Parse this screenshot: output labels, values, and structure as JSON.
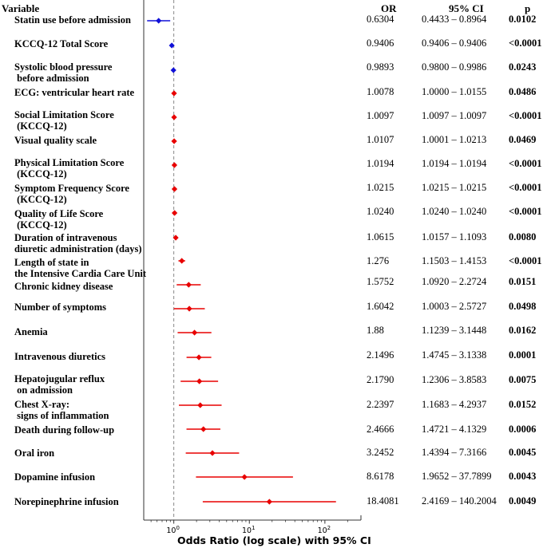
{
  "chart_data": {
    "type": "forest",
    "headers": {
      "variable": "Variable",
      "or": "OR",
      "ci": "95% CI",
      "p": "p"
    },
    "xlabel": "Odds Ratio (log scale) with 95% CI",
    "x_scale": "log",
    "xlim": [
      0.4,
      300
    ],
    "xticks": [
      {
        "value": 1,
        "base": "10",
        "exp": "0"
      },
      {
        "value": 10,
        "base": "10",
        "exp": "1"
      },
      {
        "value": 100,
        "base": "10",
        "exp": "2"
      }
    ],
    "reference_line": 1,
    "colors": {
      "protective": "#1010d8",
      "risk": "#e80000",
      "reference": "#888888"
    },
    "rows": [
      {
        "variable": "Statin use before admission",
        "or": 0.6304,
        "lo": 0.4433,
        "hi": 0.8964,
        "or_text": "0.6304",
        "ci_text": "0.4433 – 0.8964",
        "p": "0.0102"
      },
      {
        "variable": "KCCQ-12 Total Score",
        "or": 0.9406,
        "lo": 0.9406,
        "hi": 0.9406,
        "or_text": "0.9406",
        "ci_text": "0.9406 – 0.9406",
        "p": "<0.0001"
      },
      {
        "variable": "Systolic blood pressure\n before admission",
        "or": 0.9893,
        "lo": 0.98,
        "hi": 0.9986,
        "or_text": "0.9893",
        "ci_text": "0.9800 – 0.9986",
        "p": "0.0243"
      },
      {
        "variable": "ECG: ventricular heart rate",
        "or": 1.0078,
        "lo": 1.0,
        "hi": 1.0155,
        "or_text": "1.0078",
        "ci_text": "1.0000 – 1.0155",
        "p": "0.0486"
      },
      {
        "variable": "Social Limitation Score\n (KCCQ-12)",
        "or": 1.0097,
        "lo": 1.0097,
        "hi": 1.0097,
        "or_text": "1.0097",
        "ci_text": "1.0097 – 1.0097",
        "p": "<0.0001"
      },
      {
        "variable": "Visual quality scale",
        "or": 1.0107,
        "lo": 1.0001,
        "hi": 1.0213,
        "or_text": "1.0107",
        "ci_text": "1.0001 – 1.0213",
        "p": "0.0469"
      },
      {
        "variable": "Physical Limitation Score\n (KCCQ-12)",
        "or": 1.0194,
        "lo": 1.0194,
        "hi": 1.0194,
        "or_text": "1.0194",
        "ci_text": "1.0194 – 1.0194",
        "p": "<0.0001"
      },
      {
        "variable": "Symptom Frequency Score\n (KCCQ-12)",
        "or": 1.0215,
        "lo": 1.0215,
        "hi": 1.0215,
        "or_text": "1.0215",
        "ci_text": "1.0215 – 1.0215",
        "p": "<0.0001"
      },
      {
        "variable": "Quality of Life Score\n (KCCQ-12)",
        "or": 1.024,
        "lo": 1.024,
        "hi": 1.024,
        "or_text": "1.0240",
        "ci_text": "1.0240 – 1.0240",
        "p": "<0.0001"
      },
      {
        "variable": "Duration of intravenous\ndiuretic administration (days)",
        "or": 1.0615,
        "lo": 1.0157,
        "hi": 1.1093,
        "or_text": "1.0615",
        "ci_text": "1.0157 – 1.1093",
        "p": "0.0080"
      },
      {
        "variable": "Length of state in\nthe Intensive Cardia Care Unit",
        "or": 1.276,
        "lo": 1.1503,
        "hi": 1.4153,
        "or_text": "1.276",
        "ci_text": "1.1503 – 1.4153",
        "p": "<0.0001"
      },
      {
        "variable": "Chronic kidney disease",
        "or": 1.5752,
        "lo": 1.092,
        "hi": 2.2724,
        "or_text": "1.5752",
        "ci_text": "1.0920 – 2.2724",
        "p": "0.0151"
      },
      {
        "variable": "Number of symptoms",
        "or": 1.6042,
        "lo": 1.0003,
        "hi": 2.5727,
        "or_text": "1.6042",
        "ci_text": "1.0003 – 2.5727",
        "p": "0.0498"
      },
      {
        "variable": "Anemia",
        "or": 1.88,
        "lo": 1.1239,
        "hi": 3.1448,
        "or_text": "1.88",
        "ci_text": "1.1239 – 3.1448",
        "p": "0.0162"
      },
      {
        "variable": "Intravenous diuretics",
        "or": 2.1496,
        "lo": 1.4745,
        "hi": 3.1338,
        "or_text": "2.1496",
        "ci_text": "1.4745 – 3.1338",
        "p": "0.0001"
      },
      {
        "variable": "Hepatojugular reflux\n on admission",
        "or": 2.179,
        "lo": 1.2306,
        "hi": 3.8583,
        "or_text": "2.1790",
        "ci_text": "1.2306 – 3.8583",
        "p": "0.0075"
      },
      {
        "variable": "Chest X-ray:\n signs of inflammation",
        "or": 2.2397,
        "lo": 1.1683,
        "hi": 4.2937,
        "or_text": "2.2397",
        "ci_text": "1.1683 – 4.2937",
        "p": "0.0152"
      },
      {
        "variable": "Death during follow-up",
        "or": 2.4666,
        "lo": 1.4721,
        "hi": 4.1329,
        "or_text": "2.4666",
        "ci_text": "1.4721 – 4.1329",
        "p": "0.0006"
      },
      {
        "variable": "Oral iron",
        "or": 3.2452,
        "lo": 1.4394,
        "hi": 7.3166,
        "or_text": "3.2452",
        "ci_text": "1.4394 – 7.3166",
        "p": "0.0045"
      },
      {
        "variable": "Dopamine infusion",
        "or": 8.6178,
        "lo": 1.9652,
        "hi": 37.7899,
        "or_text": "8.6178",
        "ci_text": "1.9652 – 37.7899",
        "p": "0.0043"
      },
      {
        "variable": "Norepinephrine infusion",
        "or": 18.4081,
        "lo": 2.4169,
        "hi": 140.2004,
        "or_text": "18.4081",
        "ci_text": "2.4169 – 140.2004",
        "p": "0.0049"
      }
    ]
  }
}
